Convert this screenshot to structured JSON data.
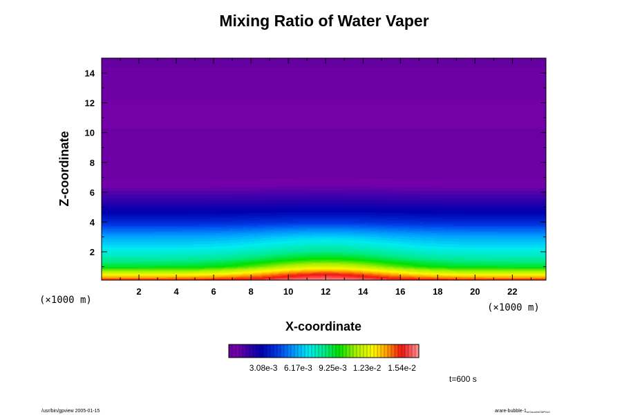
{
  "chart_data": {
    "type": "heatmap",
    "title": "Mixing Ratio of Water Vaper",
    "xlabel": "X-coordinate",
    "ylabel": "Z-coordinate",
    "x_unit": "(×1000 m)",
    "y_unit": "(×1000 m)",
    "xlim": [
      0,
      23.8
    ],
    "ylim": [
      0.1,
      15
    ],
    "x_ticks": [
      2,
      4,
      6,
      8,
      10,
      12,
      14,
      16,
      18,
      20,
      22
    ],
    "y_ticks": [
      2,
      4,
      6,
      8,
      10,
      12,
      14
    ],
    "bubble_center_x": 12,
    "colorbar": {
      "min": 0,
      "max": 0.0169,
      "tick_values": [
        0.00308,
        0.00617,
        0.00925,
        0.0123,
        0.0154
      ],
      "tick_labels": [
        "3.08e-3",
        "6.17e-3",
        "9.25e-3",
        "1.23e-2",
        "1.54e-2"
      ]
    },
    "profile": {
      "z": [
        0.1,
        0.5,
        1,
        1.5,
        2,
        2.5,
        3,
        3.5,
        4,
        4.5,
        5,
        5.5,
        6,
        6.5,
        7,
        7.5,
        8,
        8.5,
        9,
        10,
        11,
        12,
        12.5,
        13,
        14,
        15
      ],
      "q_edge": [
        0.0154,
        0.0125,
        0.0095,
        0.0083,
        0.0075,
        0.0068,
        0.0061,
        0.0051,
        0.004,
        0.0032,
        0.0026,
        0.002,
        0.0014,
        0.0008,
        0.0004,
        0.0003,
        0.0003,
        0.0004,
        0.0004,
        0.0005,
        0.0006,
        0.0006,
        0.0004,
        0.0003,
        0.0003,
        0.0002
      ],
      "q_center": [
        0.0169,
        0.0154,
        0.0123,
        0.01,
        0.0086,
        0.0077,
        0.0068,
        0.0056,
        0.0043,
        0.0034,
        0.0027,
        0.0021,
        0.0015,
        0.0009,
        0.0005,
        0.0003,
        0.0003,
        0.0004,
        0.0004,
        0.0005,
        0.0006,
        0.0006,
        0.0004,
        0.0003,
        0.0003,
        0.0002
      ]
    },
    "time_label": "t=600 s"
  },
  "footer": {
    "left": "/usr/bin/gpview 2005-01-15",
    "right_main": "arare-bubble-1",
    "right_sub": "mCloud/mCMP/rz0"
  }
}
